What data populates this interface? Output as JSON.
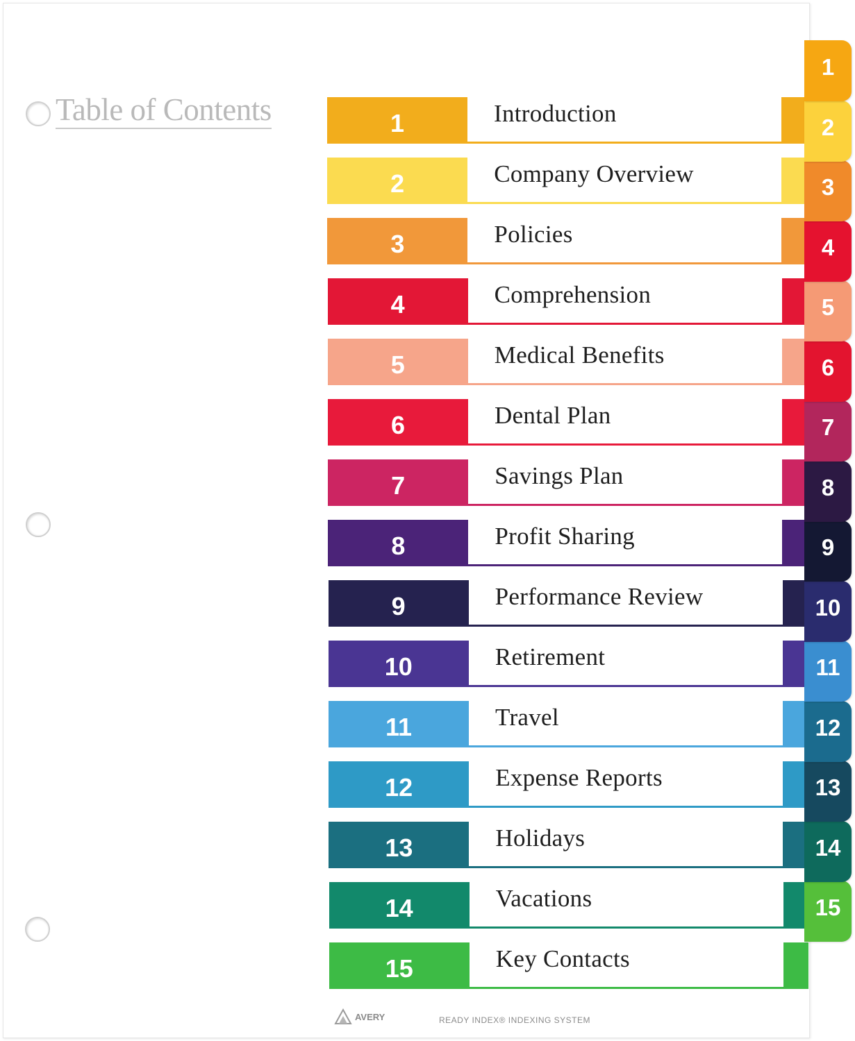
{
  "title": "Table of Contents",
  "entries": [
    {
      "number": "1",
      "label": "Introduction",
      "color": "#f2ad1c"
    },
    {
      "number": "2",
      "label": "Company Overview",
      "color": "#fbdb50"
    },
    {
      "number": "3",
      "label": "Policies",
      "color": "#f1983a"
    },
    {
      "number": "4",
      "label": "Comprehension",
      "color": "#e31736"
    },
    {
      "number": "5",
      "label": "Medical Benefits",
      "color": "#f6a58a"
    },
    {
      "number": "6",
      "label": "Dental Plan",
      "color": "#e81a3b"
    },
    {
      "number": "7",
      "label": "Savings Plan",
      "color": "#cc2562"
    },
    {
      "number": "8",
      "label": "Profit Sharing",
      "color": "#4b2378"
    },
    {
      "number": "9",
      "label": "Performance Review",
      "color": "#25224f"
    },
    {
      "number": "10",
      "label": "Retirement",
      "color": "#4a3593"
    },
    {
      "number": "11",
      "label": "Travel",
      "color": "#4aa6dd"
    },
    {
      "number": "12",
      "label": "Expense Reports",
      "color": "#2e9ac6"
    },
    {
      "number": "13",
      "label": "Holidays",
      "color": "#1b6f80"
    },
    {
      "number": "14",
      "label": "Vacations",
      "color": "#12896b"
    },
    {
      "number": "15",
      "label": "Key Contacts",
      "color": "#3dbb45"
    }
  ],
  "tabs": [
    {
      "number": "1",
      "color": "#f6a712"
    },
    {
      "number": "2",
      "color": "#fcd23c"
    },
    {
      "number": "3",
      "color": "#f08a2a"
    },
    {
      "number": "4",
      "color": "#e5122f"
    },
    {
      "number": "5",
      "color": "#f59a75"
    },
    {
      "number": "6",
      "color": "#e3142f"
    },
    {
      "number": "7",
      "color": "#b2265c"
    },
    {
      "number": "8",
      "color": "#2c1943"
    },
    {
      "number": "9",
      "color": "#141833"
    },
    {
      "number": "10",
      "color": "#2a2c6e"
    },
    {
      "number": "11",
      "color": "#3a8ed0"
    },
    {
      "number": "12",
      "color": "#1b6b8e"
    },
    {
      "number": "13",
      "color": "#16495f"
    },
    {
      "number": "14",
      "color": "#0e6a5c"
    },
    {
      "number": "15",
      "color": "#55bf3a"
    }
  ],
  "footer": {
    "brand": "AVERY",
    "system": "READY INDEX® INDEXING SYSTEM"
  }
}
